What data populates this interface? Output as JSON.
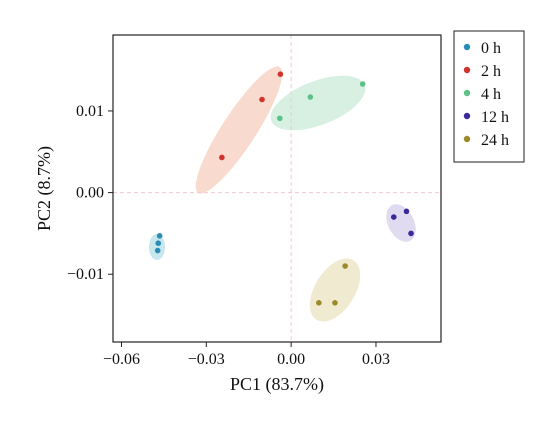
{
  "chart_data": {
    "type": "scatter",
    "xlabel": "PC1 (83.7%)",
    "ylabel": "PC2 (8.7%)",
    "xlim": [
      -0.063,
      0.053
    ],
    "ylim": [
      -0.0183,
      0.0193
    ],
    "xticks": [
      -0.06,
      -0.03,
      0.0,
      0.03
    ],
    "xtick_labels": [
      "−0.06",
      "−0.03",
      "0.00",
      "0.03"
    ],
    "yticks": [
      -0.01,
      0.0,
      0.01
    ],
    "ytick_labels": [
      "−0.01",
      "0.00",
      "0.01"
    ],
    "reference_lines": {
      "x": 0,
      "y": 0,
      "style": "dashed",
      "color": "#f0c8d4"
    },
    "grid": false,
    "legend_position": "outside-right",
    "series": [
      {
        "name": "0 h",
        "color": "#2a8bb5",
        "ellipse_color": "#a9d8e4",
        "points": [
          [
            -0.0465,
            -0.0053
          ],
          [
            -0.047,
            -0.0062
          ],
          [
            -0.0472,
            -0.0071
          ]
        ]
      },
      {
        "name": "2 h",
        "color": "#d0342c",
        "ellipse_color": "#f5c8b4",
        "points": [
          [
            -0.0245,
            0.0043
          ],
          [
            -0.0103,
            0.0114
          ],
          [
            -0.0038,
            0.0145
          ]
        ]
      },
      {
        "name": "4 h",
        "color": "#5cc185",
        "ellipse_color": "#c2e8d3",
        "points": [
          [
            -0.004,
            0.0091
          ],
          [
            0.0068,
            0.0117
          ],
          [
            0.0253,
            0.0133
          ]
        ]
      },
      {
        "name": "12 h",
        "color": "#3a2a9a",
        "ellipse_color": "#cfc8ea",
        "points": [
          [
            0.0363,
            -0.003
          ],
          [
            0.0408,
            -0.0023
          ],
          [
            0.0424,
            -0.005
          ]
        ]
      },
      {
        "name": "24 h",
        "color": "#9c8a2a",
        "ellipse_color": "#e8dfb8",
        "points": [
          [
            0.0191,
            -0.009
          ],
          [
            0.0098,
            -0.0135
          ],
          [
            0.0155,
            -0.0135
          ]
        ]
      }
    ]
  }
}
